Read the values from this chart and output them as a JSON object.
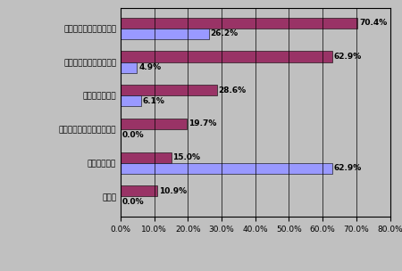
{
  "categories": [
    "企業の公式ウェブサイト",
    "企業のニュースリリース",
    "ビジネスブログ",
    "企業の社員が書いたブログ",
    "一般のブログ",
    "その他"
  ],
  "america_values": [
    26.2,
    4.9,
    6.1,
    0.0,
    62.9,
    0.0
  ],
  "japan_values": [
    70.4,
    62.9,
    28.6,
    19.7,
    15.0,
    10.9
  ],
  "america_color": "#9999FF",
  "japan_color": "#993366",
  "bg_color": "#C0C0C0",
  "plot_bg_color": "#C0C0C0",
  "xlim": [
    0,
    80
  ],
  "xticks": [
    0,
    10,
    20,
    30,
    40,
    50,
    60,
    70,
    80
  ],
  "bar_height": 0.32,
  "label_fontsize": 6.5,
  "tick_fontsize": 6.5,
  "legend_fontsize": 7.5
}
